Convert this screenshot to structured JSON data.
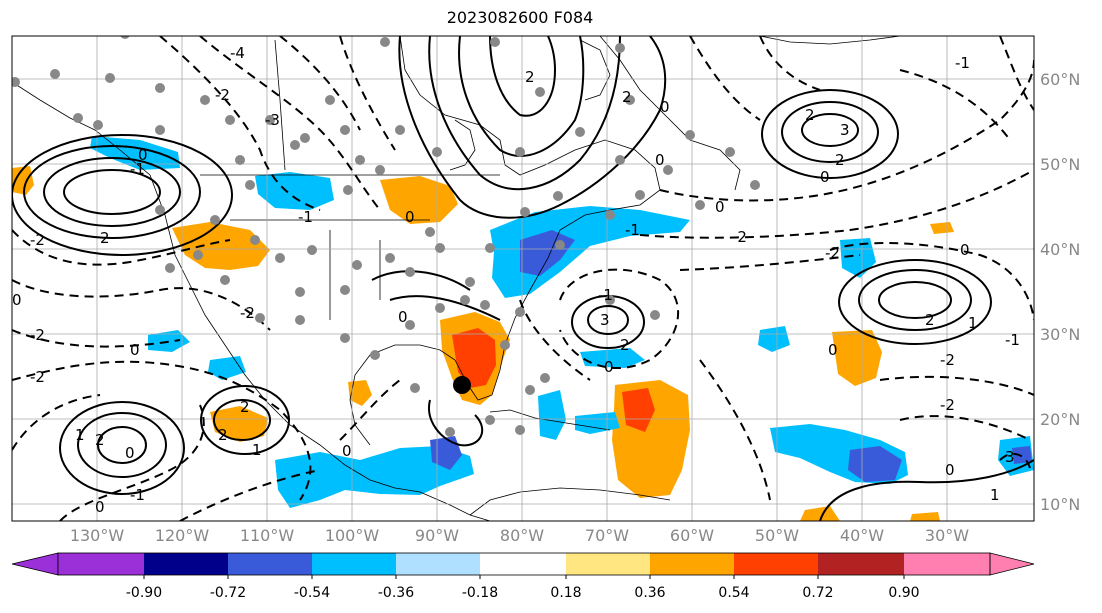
{
  "title": "2023082600 F084",
  "map": {
    "projection": "cylindrical",
    "lon_range": [
      -137,
      -15
    ],
    "lat_range": [
      8,
      65
    ],
    "lon_ticks": [
      "130°W",
      "120°W",
      "110°W",
      "100°W",
      "90°W",
      "80°W",
      "70°W",
      "60°W",
      "50°W",
      "40°W",
      "30°W"
    ],
    "lat_ticks": [
      "10°N",
      "20°N",
      "30°N",
      "40°N",
      "50°N",
      "60°N"
    ],
    "gridlines": true,
    "storm_marker": {
      "lat": 24,
      "lon": -86.5,
      "color": "#000000"
    }
  },
  "colorbar": {
    "extend": "both",
    "bounds": [
      "-0.90",
      "-0.72",
      "-0.54",
      "-0.36",
      "-0.18",
      "0.18",
      "0.36",
      "0.54",
      "0.72",
      "0.90"
    ],
    "colors": [
      "#9b30d9",
      "#00008b",
      "#3a5bd9",
      "#00bfff",
      "#b0e0ff",
      "#ffffff",
      "#ffe680",
      "#ffa500",
      "#ff4000",
      "#b22222",
      "#ff80b0"
    ]
  },
  "contour_labels": [
    "2",
    "1",
    "0",
    "-1",
    "-2",
    "-3",
    "3",
    "-4"
  ]
}
